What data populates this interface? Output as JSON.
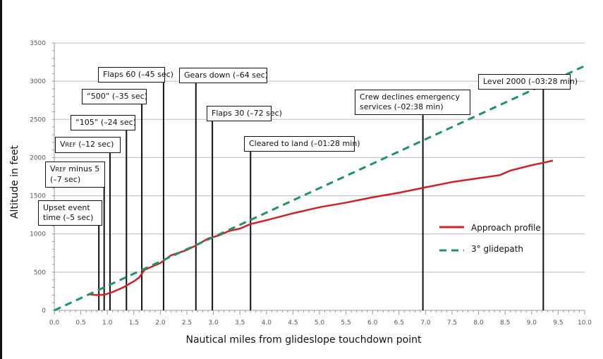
{
  "chart_data": {
    "type": "line",
    "title": "",
    "xlabel": "Nautical miles from glideslope touchdown point",
    "ylabel": "Altitude in feet",
    "xlim": [
      0,
      10
    ],
    "ylim": [
      0,
      3500
    ],
    "xticks": [
      "0.0",
      "0.5",
      "1.0",
      "1.5",
      "2.0",
      "2.5",
      "3.0",
      "3.5",
      "4.0",
      "4.5",
      "5.0",
      "5.5",
      "6.0",
      "6.5",
      "7.0",
      "7.5",
      "8.0",
      "8.5",
      "9.0",
      "9.5",
      "10.0"
    ],
    "yticks": [
      "0",
      "500",
      "1000",
      "1500",
      "2000",
      "2500",
      "3000",
      "3500"
    ],
    "grid": "horizontal",
    "legend_position": "right-middle",
    "series": [
      {
        "name": "Approach profile",
        "color": "#d0202a",
        "style": "solid",
        "x": [
          0.65,
          0.8,
          0.95,
          1.1,
          1.3,
          1.5,
          1.6,
          1.7,
          2.0,
          2.2,
          2.5,
          2.7,
          2.9,
          3.1,
          3.3,
          3.5,
          3.7,
          4.0,
          4.5,
          5.0,
          5.5,
          6.0,
          6.5,
          7.0,
          7.5,
          8.0,
          8.4,
          8.6,
          9.0,
          9.4
        ],
        "y": [
          210,
          200,
          205,
          240,
          300,
          380,
          430,
          530,
          620,
          720,
          790,
          860,
          940,
          980,
          1040,
          1070,
          1130,
          1180,
          1270,
          1350,
          1410,
          1480,
          1540,
          1610,
          1680,
          1730,
          1770,
          1830,
          1900,
          1960
        ]
      },
      {
        "name": "3° glidepath",
        "color": "#1f9460",
        "style": "dashed",
        "x": [
          0,
          10
        ],
        "y": [
          0,
          3200
        ]
      }
    ],
    "annotations": [
      {
        "x": 0.84,
        "lines": [
          "Upset event",
          "time (–5 sec)"
        ]
      },
      {
        "x": 0.94,
        "lines": [
          "V|REF| minus 5",
          "(–7 sec)"
        ]
      },
      {
        "x": 1.05,
        "lines": [
          "V|REF| (–12 sec)"
        ]
      },
      {
        "x": 1.36,
        "lines": [
          "“105” (–24 sec)"
        ]
      },
      {
        "x": 1.65,
        "lines": [
          "“500” (–35 sec)"
        ]
      },
      {
        "x": 2.06,
        "lines": [
          "Flaps 60 (–45 sec)"
        ]
      },
      {
        "x": 2.67,
        "lines": [
          "Gears down (–64 sec)"
        ]
      },
      {
        "x": 2.98,
        "lines": [
          "Flaps 30 (–72 sec)"
        ]
      },
      {
        "x": 3.7,
        "lines": [
          "Cleared to land (–01:28 min)"
        ]
      },
      {
        "x": 6.95,
        "lines": [
          "Crew declines emergency",
          "services (–02:38 min)"
        ]
      },
      {
        "x": 9.22,
        "lines": [
          "Level 2000 (–03:28 min)"
        ]
      }
    ]
  }
}
